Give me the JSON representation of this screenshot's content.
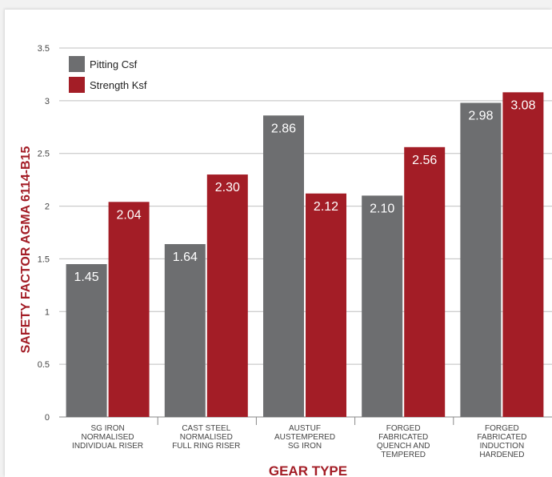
{
  "chart_data": {
    "type": "bar",
    "ylabel": "SAFETY FACTOR AGMA 6114-B15",
    "xlabel": "GEAR TYPE",
    "ylim": [
      0,
      3.5
    ],
    "yticks": [
      "0",
      "0.5",
      "1",
      "1.5",
      "2",
      "2.5",
      "3",
      "3.5"
    ],
    "grid": true,
    "legend_placement": "top-left",
    "categories": [
      [
        "SG IRON",
        "NORMALISED",
        "INDIVIDUAL RISER"
      ],
      [
        "CAST STEEL",
        "NORMALISED",
        "FULL RING RISER"
      ],
      [
        "AUSTUF",
        "AUSTEMPERED",
        "SG IRON"
      ],
      [
        "FORGED",
        "FABRICATED",
        "QUENCH AND",
        "TEMPERED"
      ],
      [
        "FORGED",
        "FABRICATED",
        "INDUCTION",
        "HARDENED"
      ]
    ],
    "series": [
      {
        "name": "Pitting Csf",
        "color": "#6d6e70",
        "values": [
          1.45,
          1.64,
          2.86,
          2.1,
          2.98
        ],
        "labels": [
          "1.45",
          "1.64",
          "2.86",
          "2.10",
          "2.98"
        ]
      },
      {
        "name": "Strength Ksf",
        "color": "#a31d26",
        "values": [
          2.04,
          2.3,
          2.12,
          2.56,
          3.08
        ],
        "labels": [
          "2.04",
          "2.30",
          "2.12",
          "2.56",
          "3.08"
        ]
      }
    ]
  }
}
